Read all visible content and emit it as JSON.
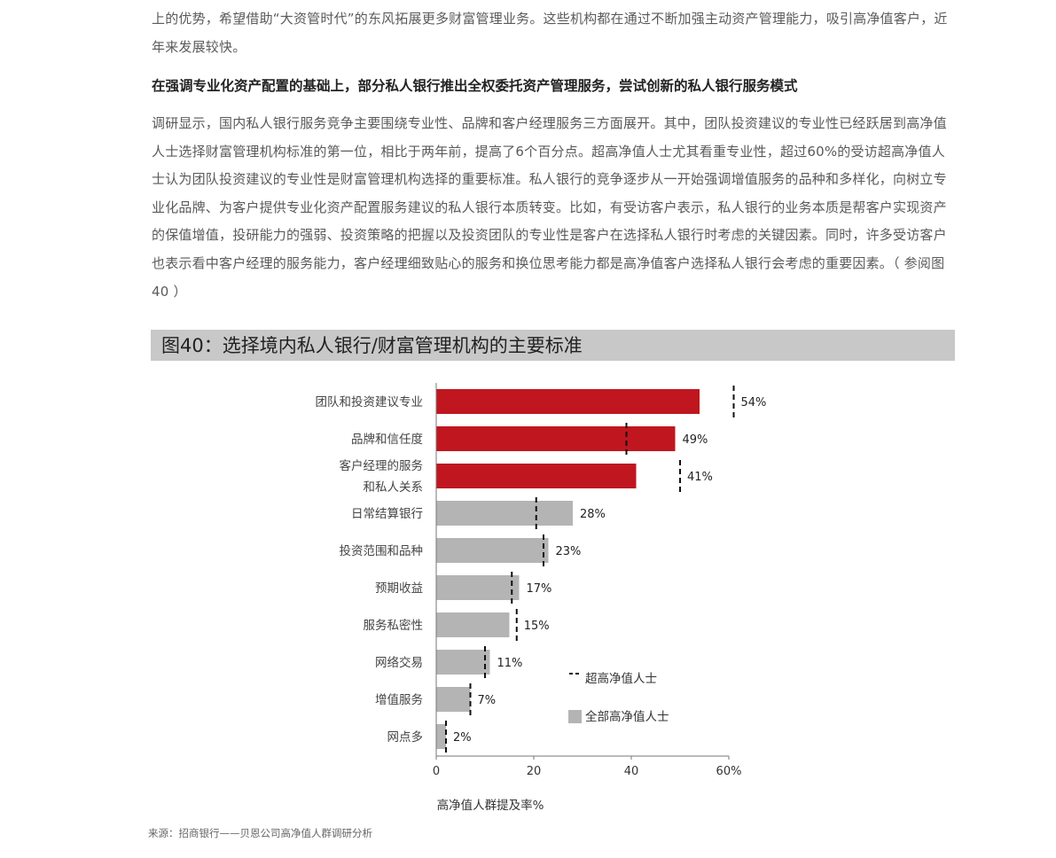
{
  "intro": {
    "paragraph": "上的优势，希望借助“大资管时代”的东风拓展更多财富管理业务。这些机构都在通过不断加强主动资产管理能力，吸引高净值客户，近年来发展较快。"
  },
  "section": {
    "heading": "在强调专业化资产配置的基础上，部分私人银行推出全权委托资产管理服务，尝试创新的私人银行服务模式",
    "paragraph": "调研显示，国内私人银行服务竞争主要围绕专业性、品牌和客户经理服务三方面展开。其中，团队投资建议的专业性已经跃居到高净值人士选择财富管理机构标准的第一位，相比于两年前，提高了6个百分点。超高净值人士尤其看重专业性，超过60%的受访超高净值人士认为团队投资建议的专业性是财富管理机构选择的重要标准。私人银行的竞争逐步从一开始强调增值服务的品种和多样化，向树立专业化品牌、为客户提供专业化资产配置服务建议的私人银行本质转变。比如，有受访客户表示，私人银行的业务本质是帮客户实现资产的保值增值，投研能力的强弱、投资策略的把握以及投资团队的专业性是客户在选择私人银行时考虑的关键因素。同时，许多受访客户也表示看中客户经理的服务能力，客户经理细致贴心的服务和换位思考能力都是高净值客户选择私人银行会考虑的重要因素。（ 参阅图40 ）"
  },
  "figure": {
    "title": "图40：选择境内私人银行/财富管理机构的主要标准"
  },
  "source": "来源：招商银行——贝恩公司高净值人群调研分析",
  "colors": {
    "highlight_bar": "#c0161f",
    "normal_bar": "#b4b4b5",
    "marker": "#111111",
    "title_band": "#c8c8c8"
  },
  "chart_data": {
    "type": "bar",
    "orientation": "horizontal",
    "title": "图40：选择境内私人银行/财富管理机构的主要标准",
    "xlabel": "高净值人群提及率%",
    "ylabel": "",
    "xlim": [
      0,
      60
    ],
    "xticks": [
      "0",
      "20",
      "40",
      "60%"
    ],
    "categories": [
      [
        "团队和投资建议专业"
      ],
      [
        "品牌和信任度"
      ],
      [
        "客户经理的服务",
        "和私人关系"
      ],
      [
        "日常结算银行"
      ],
      [
        "投资范围和品种"
      ],
      [
        "预期收益"
      ],
      [
        "服务私密性"
      ],
      [
        "网络交易"
      ],
      [
        "增值服务"
      ],
      [
        "网点多"
      ]
    ],
    "series": [
      {
        "name": "全部高净值人士",
        "kind": "bar",
        "values": [
          54,
          49,
          41,
          28,
          23,
          17,
          15,
          11,
          7,
          2
        ],
        "highlighted": [
          true,
          true,
          true,
          false,
          false,
          false,
          false,
          false,
          false,
          false
        ]
      },
      {
        "name": "超高净值人士",
        "kind": "marker",
        "values": [
          61,
          39,
          50,
          20.5,
          22,
          15.5,
          16.5,
          10,
          7,
          2
        ]
      }
    ],
    "value_labels": [
      "54%",
      "49%",
      "41%",
      "28%",
      "23%",
      "17%",
      "15%",
      "11%",
      "7%",
      "2%"
    ],
    "legend": {
      "placement": "bottom-right",
      "items": [
        {
          "label": "超高净值人士",
          "kind": "marker"
        },
        {
          "label": "全部高净值人士",
          "kind": "bar"
        }
      ]
    }
  }
}
